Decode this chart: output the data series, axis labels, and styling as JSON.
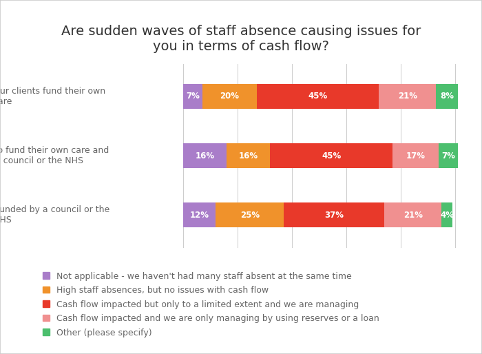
{
  "title": "Are sudden waves of staff absence causing issues for\nyou in terms of cash flow?",
  "categories": [
    "Two thirds or more are funded by a council or the\nNHS",
    "A mixture of people who fund their own care and\nthose funded by a council or the NHS",
    "Two thirds or more of our clients fund their own\ncare"
  ],
  "series": [
    {
      "label": "Not applicable - we haven't had many staff absent at the same time",
      "color": "#a97dc9",
      "values": [
        12,
        16,
        7
      ]
    },
    {
      "label": "High staff absences, but no issues with cash flow",
      "color": "#f0922b",
      "values": [
        25,
        16,
        20
      ]
    },
    {
      "label": "Cash flow impacted but only to a limited extent and we are managing",
      "color": "#e8392a",
      "values": [
        37,
        45,
        45
      ]
    },
    {
      "label": "Cash flow impacted and we are only managing by using reserves or a loan",
      "color": "#f09090",
      "values": [
        21,
        17,
        21
      ]
    },
    {
      "label": "Other (please specify)",
      "color": "#4cbf6e",
      "values": [
        4,
        7,
        8
      ]
    }
  ],
  "bar_height": 0.42,
  "xlim": [
    0,
    101
  ],
  "background_color": "#ffffff",
  "border_color": "#cccccc",
  "title_fontsize": 14,
  "tick_fontsize": 9,
  "legend_fontsize": 9,
  "text_color": "#666666",
  "value_text_color": "#ffffff",
  "value_fontsize": 8.5,
  "grid_xticks": [
    0,
    20,
    40,
    60,
    80,
    100
  ]
}
